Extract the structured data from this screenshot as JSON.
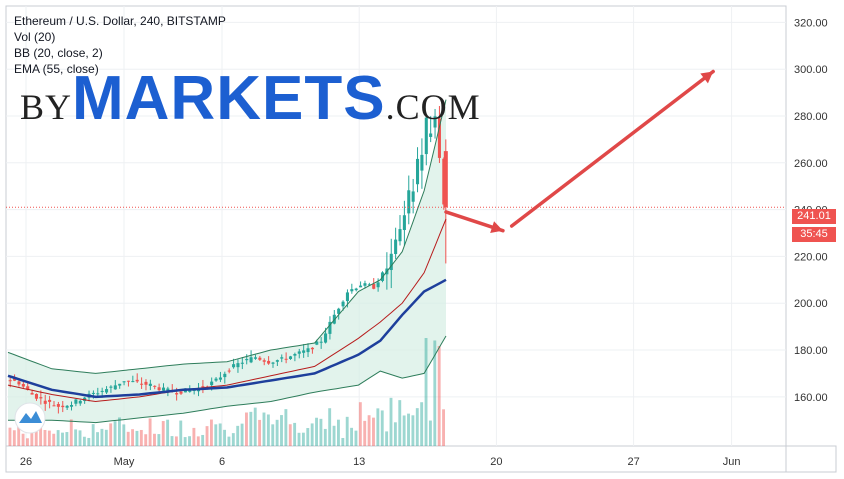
{
  "header": {
    "symbol_line": "Ethereum / U.S. Dollar, 240, BITSTAMP",
    "indicators": [
      "Vol (20)",
      "BB (20, close, 2)",
      "EMA (55, close)"
    ]
  },
  "watermark": {
    "prefix": "BY",
    "brand": "MARKETS",
    "suffix": ".COM"
  },
  "price_label": {
    "value": "241.01",
    "countdown": "35:45"
  },
  "colors": {
    "up": "#26a69a",
    "down": "#ef5350",
    "ema": "#1e3f9c",
    "bb": "#2e7d5b",
    "bb_fill": "#d6eee4",
    "arrow": "#e04848",
    "grid": "#eef0f3",
    "brand": "#1c5fd1"
  },
  "chart_data": {
    "type": "candlestick",
    "title": "Ethereum / U.S. Dollar, 240, BITSTAMP",
    "y_ticks": [
      "320.00",
      "300.00",
      "280.00",
      "260.00",
      "240.00",
      "220.00",
      "200.00",
      "180.00",
      "160.00"
    ],
    "x_ticks": [
      "26",
      "May",
      "6",
      "13",
      "20",
      "27",
      "Jun"
    ],
    "ylim": [
      139,
      327
    ],
    "grid": true,
    "last_price": 241.01,
    "price_path": [
      [
        0,
        168
      ],
      [
        3,
        166
      ],
      [
        6,
        161
      ],
      [
        9,
        158
      ],
      [
        12,
        156
      ],
      [
        15,
        157
      ],
      [
        18,
        160
      ],
      [
        21,
        162
      ],
      [
        24,
        164
      ],
      [
        27,
        167
      ],
      [
        30,
        166
      ],
      [
        33,
        165
      ],
      [
        36,
        163
      ],
      [
        39,
        162
      ],
      [
        42,
        163
      ],
      [
        45,
        164
      ],
      [
        48,
        167
      ],
      [
        51,
        172
      ],
      [
        54,
        175
      ],
      [
        57,
        177
      ],
      [
        60,
        175
      ],
      [
        63,
        176
      ],
      [
        66,
        178
      ],
      [
        69,
        180
      ],
      [
        72,
        184
      ],
      [
        75,
        195
      ],
      [
        78,
        205
      ],
      [
        81,
        208
      ],
      [
        84,
        207
      ],
      [
        87,
        215
      ],
      [
        90,
        232
      ],
      [
        93,
        250
      ],
      [
        96,
        272
      ],
      [
        98,
        279
      ],
      [
        99,
        262
      ],
      [
        100,
        241.01
      ]
    ],
    "ema_path": [
      [
        0,
        169
      ],
      [
        10,
        163
      ],
      [
        20,
        160
      ],
      [
        30,
        161
      ],
      [
        40,
        163
      ],
      [
        50,
        164
      ],
      [
        60,
        167
      ],
      [
        70,
        170
      ],
      [
        80,
        178
      ],
      [
        85,
        184
      ],
      [
        90,
        195
      ],
      [
        95,
        205
      ],
      [
        100,
        210
      ]
    ],
    "bb_upper": [
      [
        0,
        179
      ],
      [
        10,
        172
      ],
      [
        20,
        170
      ],
      [
        30,
        172
      ],
      [
        40,
        174
      ],
      [
        50,
        175
      ],
      [
        60,
        180
      ],
      [
        70,
        183
      ],
      [
        80,
        205
      ],
      [
        85,
        210
      ],
      [
        90,
        222
      ],
      [
        95,
        248
      ],
      [
        100,
        287
      ]
    ],
    "bb_lower": [
      [
        0,
        150
      ],
      [
        10,
        150
      ],
      [
        20,
        149
      ],
      [
        30,
        151
      ],
      [
        40,
        153
      ],
      [
        50,
        156
      ],
      [
        60,
        158
      ],
      [
        70,
        162
      ],
      [
        80,
        165
      ],
      [
        85,
        171
      ],
      [
        90,
        168
      ],
      [
        95,
        170
      ],
      [
        100,
        186
      ]
    ],
    "bb_mid": [
      [
        0,
        165
      ],
      [
        10,
        161
      ],
      [
        20,
        158
      ],
      [
        30,
        160
      ],
      [
        40,
        163
      ],
      [
        50,
        165
      ],
      [
        60,
        169
      ],
      [
        70,
        173
      ],
      [
        80,
        185
      ],
      [
        85,
        192
      ],
      [
        90,
        200
      ],
      [
        95,
        213
      ],
      [
        100,
        236
      ]
    ],
    "forecast_arrows": [
      {
        "from": [
          100,
          239
        ],
        "to": [
          113,
          231
        ]
      },
      {
        "from": [
          115,
          233
        ],
        "to": [
          161,
          299
        ]
      }
    ]
  }
}
